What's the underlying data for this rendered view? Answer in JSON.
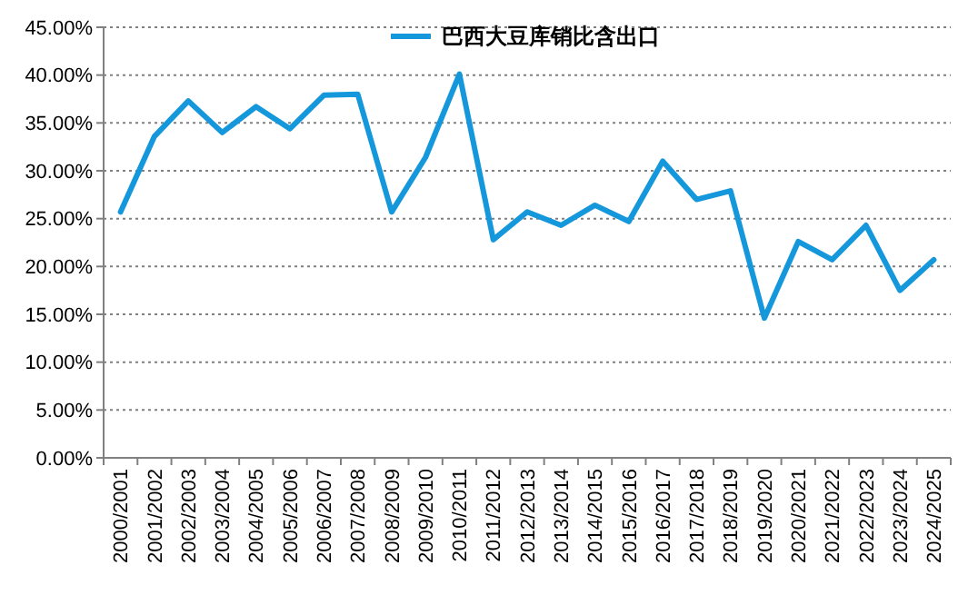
{
  "chart_data": {
    "type": "line",
    "categories": [
      "2000/2001",
      "2001/2002",
      "2002/2003",
      "2003/2004",
      "2004/2005",
      "2005/2006",
      "2006/2007",
      "2007/2008",
      "2008/2009",
      "2009/2010",
      "2010/2011",
      "2011/2012",
      "2012/2013",
      "2013/2014",
      "2014/2015",
      "2015/2016",
      "2016/2017",
      "2017/2018",
      "2018/2019",
      "2019/2020",
      "2020/2021",
      "2021/2022",
      "2022/2023",
      "2023/2024",
      "2024/2025"
    ],
    "series": [
      {
        "name": "巴西大豆库销比含出口",
        "color": "#1597dc",
        "values": [
          25.7,
          33.6,
          37.3,
          34.0,
          36.7,
          34.4,
          37.9,
          38.0,
          25.7,
          31.4,
          40.1,
          22.8,
          25.7,
          24.3,
          26.4,
          24.7,
          31.0,
          27.0,
          27.9,
          14.6,
          22.6,
          20.7,
          24.3,
          17.5,
          20.7
        ]
      }
    ],
    "ylim": [
      0,
      45
    ],
    "yticks": [
      {
        "value": 0,
        "label": "0.00%"
      },
      {
        "value": 5,
        "label": "5.00%"
      },
      {
        "value": 10,
        "label": "10.00%"
      },
      {
        "value": 15,
        "label": "15.00%"
      },
      {
        "value": 20,
        "label": "20.00%"
      },
      {
        "value": 25,
        "label": "25.00%"
      },
      {
        "value": 30,
        "label": "30.00%"
      },
      {
        "value": 35,
        "label": "35.00%"
      },
      {
        "value": 40,
        "label": "40.00%"
      },
      {
        "value": 45,
        "label": "45.00%"
      }
    ],
    "grid": "y",
    "legend": "top",
    "marker": "none",
    "line_style": "solid"
  }
}
